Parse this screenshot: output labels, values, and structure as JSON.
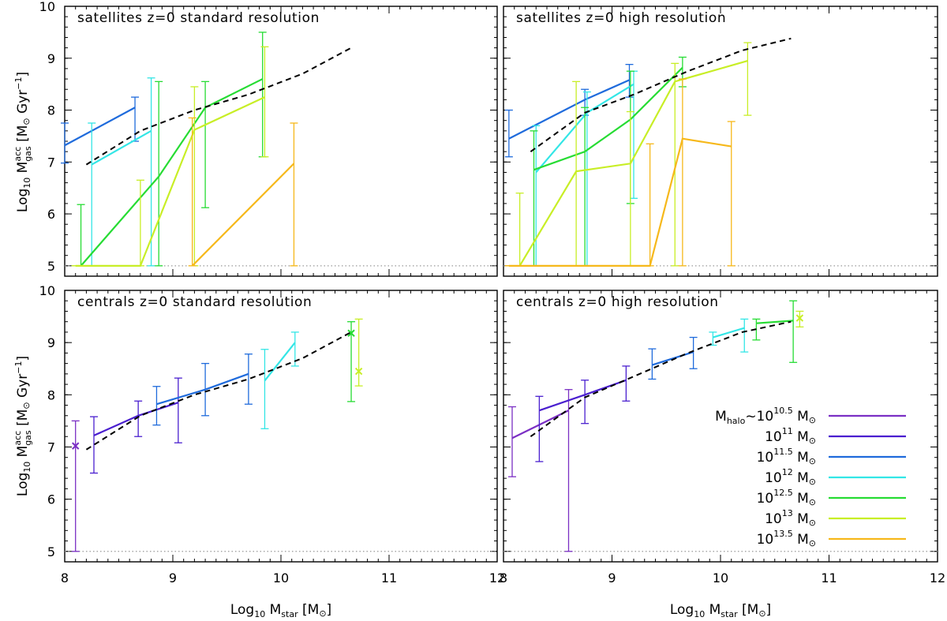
{
  "legend": {
    "prefix": "M",
    "prefix_sub": "halo",
    "unit": "M",
    "entries": [
      {
        "label_main": "~10",
        "exp": "10.5",
        "color": "#7b2fc4"
      },
      {
        "label_main": "10",
        "exp": "11",
        "color": "#4a1fcf"
      },
      {
        "label_main": "10",
        "exp": "11.5",
        "color": "#1f6bdc"
      },
      {
        "label_main": "10",
        "exp": "12",
        "color": "#33e6e6"
      },
      {
        "label_main": "10",
        "exp": "12.5",
        "color": "#26dc33"
      },
      {
        "label_main": "10",
        "exp": "13",
        "color": "#c8ee26"
      },
      {
        "label_main": "10",
        "exp": "13.5",
        "color": "#f6b81a"
      }
    ]
  },
  "axes": {
    "xlabel_prefix": "Log",
    "xlabel_base": "10",
    "xlabel_var": "M",
    "xlabel_sub": "star",
    "xlabel_unit": "[M",
    "xlabel_close": "]",
    "ylabel_prefix": "Log",
    "ylabel_base": "10",
    "ylabel_var": "M",
    "ylabel_sup": "acc",
    "ylabel_sub": "gas",
    "ylabel_unit": "[M",
    "ylabel_unit2": "Gyr",
    "ylabel_exp": "−1",
    "ylabel_close": "]",
    "x_ticks": [
      "8",
      "9",
      "10",
      "11",
      "12"
    ],
    "y_ticks": [
      "5",
      "6",
      "7",
      "8",
      "9",
      "10"
    ]
  },
  "chart_data": [
    {
      "type": "line",
      "title": "satellites z=0 standard resolution",
      "xlim": [
        8,
        12
      ],
      "ylim": [
        4.8,
        10
      ],
      "floor_line": 5,
      "mean": {
        "x": [
          8.2,
          8.7,
          9.2,
          9.7,
          10.2,
          10.65
        ],
        "y": [
          6.95,
          7.6,
          8.0,
          8.3,
          8.7,
          9.2
        ]
      },
      "series": [
        {
          "color_index": 2,
          "points": [
            {
              "x": 8.0,
              "y": 7.32,
              "lo": 6.98,
              "hi": 7.75
            },
            {
              "x": 8.65,
              "y": 8.05,
              "lo": 7.4,
              "hi": 8.25
            }
          ]
        },
        {
          "color_index": 3,
          "points": [
            {
              "x": 8.25,
              "y": 6.95,
              "lo": 5.0,
              "hi": 7.75
            },
            {
              "x": 8.8,
              "y": 7.6,
              "lo": 5.0,
              "hi": 8.62
            }
          ]
        },
        {
          "color_index": 4,
          "points": [
            {
              "x": 8.15,
              "y": 5.0,
              "lo": 5.0,
              "hi": 6.18
            },
            {
              "x": 8.87,
              "y": 6.72,
              "lo": 5.0,
              "hi": 8.55
            },
            {
              "x": 9.3,
              "y": 8.05,
              "lo": 6.12,
              "hi": 8.55
            },
            {
              "x": 9.83,
              "y": 8.6,
              "lo": 7.1,
              "hi": 9.5
            }
          ]
        },
        {
          "color_index": 5,
          "points": [
            {
              "x": 8.1,
              "y": 5.0,
              "lo": 5.0,
              "hi": 5.0
            },
            {
              "x": 8.7,
              "y": 5.0,
              "lo": 5.0,
              "hi": 6.65
            },
            {
              "x": 9.2,
              "y": 7.62,
              "lo": 5.0,
              "hi": 8.45
            },
            {
              "x": 9.85,
              "y": 8.25,
              "lo": 7.1,
              "hi": 9.22
            }
          ]
        },
        {
          "color_index": 6,
          "points": [
            {
              "x": 9.18,
              "y": 5.0,
              "lo": 5.0,
              "hi": 7.85
            },
            {
              "x": 10.12,
              "y": 6.97,
              "lo": 5.0,
              "hi": 7.75
            }
          ]
        }
      ]
    },
    {
      "type": "line",
      "title": "satellites z=0 high resolution",
      "xlim": [
        8,
        12
      ],
      "ylim": [
        4.8,
        10
      ],
      "floor_line": 5,
      "mean": {
        "x": [
          8.25,
          8.75,
          9.2,
          9.7,
          10.2,
          10.65
        ],
        "y": [
          7.2,
          7.95,
          8.3,
          8.75,
          9.15,
          9.38
        ]
      },
      "series": [
        {
          "color_index": 2,
          "points": [
            {
              "x": 8.05,
              "y": 7.45,
              "lo": 7.1,
              "hi": 8.0
            },
            {
              "x": 8.75,
              "y": 8.2,
              "lo": 7.9,
              "hi": 8.4
            },
            {
              "x": 9.16,
              "y": 8.58,
              "lo": 8.25,
              "hi": 8.88
            }
          ]
        },
        {
          "color_index": 3,
          "points": [
            {
              "x": 8.3,
              "y": 6.8,
              "lo": 5.0,
              "hi": 7.7
            },
            {
              "x": 8.77,
              "y": 7.95,
              "lo": 5.0,
              "hi": 8.35
            },
            {
              "x": 9.2,
              "y": 8.5,
              "lo": 6.3,
              "hi": 8.75
            }
          ]
        },
        {
          "color_index": 4,
          "points": [
            {
              "x": 8.28,
              "y": 6.85,
              "lo": 5.0,
              "hi": 7.6
            },
            {
              "x": 8.75,
              "y": 7.2,
              "lo": 5.0,
              "hi": 8.05
            },
            {
              "x": 9.17,
              "y": 7.82,
              "lo": 6.2,
              "hi": 8.75
            },
            {
              "x": 9.65,
              "y": 8.82,
              "lo": 8.45,
              "hi": 9.02
            }
          ]
        },
        {
          "color_index": 5,
          "points": [
            {
              "x": 8.15,
              "y": 5.0,
              "lo": 5.0,
              "hi": 6.4
            },
            {
              "x": 8.67,
              "y": 6.82,
              "lo": 5.0,
              "hi": 8.55
            },
            {
              "x": 9.17,
              "y": 6.97,
              "lo": 5.0,
              "hi": 7.97
            },
            {
              "x": 9.58,
              "y": 8.55,
              "lo": 5.0,
              "hi": 8.9
            },
            {
              "x": 10.25,
              "y": 8.95,
              "lo": 7.9,
              "hi": 9.3
            }
          ]
        },
        {
          "color_index": 6,
          "points": [
            {
              "x": 8.05,
              "y": 5.0,
              "lo": 5.0,
              "hi": 5.0
            },
            {
              "x": 9.35,
              "y": 5.0,
              "lo": 5.0,
              "hi": 7.35
            },
            {
              "x": 9.65,
              "y": 7.45,
              "lo": 5.0,
              "hi": 8.6
            },
            {
              "x": 10.1,
              "y": 7.3,
              "lo": 5.0,
              "hi": 7.78
            }
          ]
        }
      ]
    },
    {
      "type": "line",
      "title": "centrals z=0 standard resolution",
      "xlim": [
        8,
        12
      ],
      "ylim": [
        4.8,
        10
      ],
      "floor_line": 5,
      "mean": {
        "x": [
          8.2,
          8.7,
          9.2,
          9.7,
          10.2,
          10.65
        ],
        "y": [
          6.95,
          7.6,
          8.0,
          8.3,
          8.7,
          9.2
        ]
      },
      "series": [
        {
          "color_index": 0,
          "points": [
            {
              "x": 8.1,
              "y": 7.02,
              "lo": 5.0,
              "hi": 7.5,
              "marker": true
            }
          ]
        },
        {
          "color_index": 1,
          "points": [
            {
              "x": 8.27,
              "y": 7.22,
              "lo": 6.5,
              "hi": 7.58
            },
            {
              "x": 8.68,
              "y": 7.6,
              "lo": 7.2,
              "hi": 7.88
            },
            {
              "x": 9.05,
              "y": 7.85,
              "lo": 7.08,
              "hi": 8.32
            }
          ]
        },
        {
          "color_index": 2,
          "points": [
            {
              "x": 8.85,
              "y": 7.82,
              "lo": 7.42,
              "hi": 8.16
            },
            {
              "x": 9.3,
              "y": 8.1,
              "lo": 7.6,
              "hi": 8.6
            },
            {
              "x": 9.7,
              "y": 8.4,
              "lo": 7.82,
              "hi": 8.78
            }
          ]
        },
        {
          "color_index": 3,
          "points": [
            {
              "x": 9.85,
              "y": 8.27,
              "lo": 7.35,
              "hi": 8.87
            },
            {
              "x": 10.13,
              "y": 9.0,
              "lo": 8.55,
              "hi": 9.2
            }
          ]
        },
        {
          "color_index": 4,
          "points": [
            {
              "x": 10.65,
              "y": 9.18,
              "lo": 7.87,
              "hi": 9.4,
              "marker": true
            }
          ]
        },
        {
          "color_index": 5,
          "points": [
            {
              "x": 10.72,
              "y": 8.45,
              "lo": 8.17,
              "hi": 9.45,
              "marker": true
            }
          ]
        }
      ]
    },
    {
      "type": "line",
      "title": "centrals z=0 high resolution",
      "xlim": [
        8,
        12
      ],
      "ylim": [
        4.8,
        10
      ],
      "floor_line": 5,
      "mean": {
        "x": [
          8.25,
          8.75,
          9.2,
          9.7,
          10.2,
          10.65
        ],
        "y": [
          7.2,
          7.95,
          8.35,
          8.8,
          9.2,
          9.4
        ]
      },
      "series": [
        {
          "color_index": 0,
          "points": [
            {
              "x": 8.08,
              "y": 7.17,
              "lo": 6.43,
              "hi": 7.77
            },
            {
              "x": 8.6,
              "y": 7.7,
              "lo": 5.0,
              "hi": 8.1
            }
          ]
        },
        {
          "color_index": 1,
          "points": [
            {
              "x": 8.33,
              "y": 7.7,
              "lo": 6.72,
              "hi": 7.97
            },
            {
              "x": 8.75,
              "y": 8.0,
              "lo": 7.45,
              "hi": 8.28
            },
            {
              "x": 9.13,
              "y": 8.28,
              "lo": 7.88,
              "hi": 8.55
            }
          ]
        },
        {
          "color_index": 2,
          "points": [
            {
              "x": 9.37,
              "y": 8.57,
              "lo": 8.3,
              "hi": 8.88
            },
            {
              "x": 9.75,
              "y": 8.82,
              "lo": 8.5,
              "hi": 9.1
            }
          ]
        },
        {
          "color_index": 3,
          "points": [
            {
              "x": 9.93,
              "y": 9.1,
              "lo": 8.95,
              "hi": 9.2
            },
            {
              "x": 10.22,
              "y": 9.28,
              "lo": 8.82,
              "hi": 9.45
            }
          ]
        },
        {
          "color_index": 4,
          "points": [
            {
              "x": 10.33,
              "y": 9.37,
              "lo": 9.05,
              "hi": 9.45
            },
            {
              "x": 10.67,
              "y": 9.42,
              "lo": 8.62,
              "hi": 9.8
            }
          ]
        },
        {
          "color_index": 5,
          "points": [
            {
              "x": 10.73,
              "y": 9.47,
              "lo": 9.3,
              "hi": 9.6,
              "marker": true
            }
          ]
        }
      ]
    }
  ]
}
